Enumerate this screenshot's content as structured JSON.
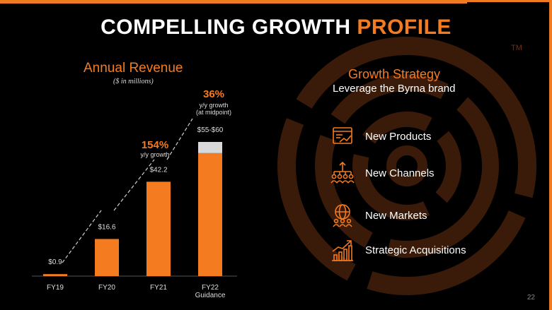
{
  "title": {
    "main": "COMPELLING GROWTH",
    "highlight": "PROFILE"
  },
  "trademark": "TM",
  "revenue": {
    "title": "Annual Revenue",
    "subtitle": "($ in millions)"
  },
  "chart_data": {
    "type": "bar",
    "title": "Annual Revenue",
    "subtitle": "($ in millions)",
    "categories": [
      "FY19",
      "FY20",
      "FY21",
      "FY22 Guidance"
    ],
    "category_labels": [
      [
        "FY19"
      ],
      [
        "FY20"
      ],
      [
        "FY21"
      ],
      [
        "FY22",
        "Guidance"
      ]
    ],
    "values": [
      0.9,
      16.6,
      42.2,
      55
    ],
    "range_top": [
      null,
      null,
      null,
      60
    ],
    "data_labels": [
      "$0.9",
      "$16.6",
      "$42.2",
      "$55-$60"
    ],
    "ylim": [
      0,
      60
    ],
    "grid": false,
    "colors": {
      "bar": "#f47b20",
      "range": "#d9d9d9",
      "annotation": "#f47b20"
    },
    "annotations": [
      {
        "value": "154%",
        "lines": [
          "y/y growth"
        ]
      },
      {
        "value": "36%",
        "lines": [
          "y/y growth",
          "(at midpoint)"
        ]
      }
    ]
  },
  "strategy": {
    "title": "Growth Strategy",
    "subtitle": "Leverage the Byrna brand",
    "items": [
      {
        "label": "New Products",
        "icon": "product-chart-icon"
      },
      {
        "label": "New Channels",
        "icon": "channel-network-icon"
      },
      {
        "label": "New Markets",
        "icon": "globe-people-icon"
      },
      {
        "label": "Strategic Acquisitions",
        "icon": "growth-arrow-icon"
      }
    ]
  },
  "page_number": "22",
  "colors": {
    "accent": "#f47b20",
    "background": "#000000",
    "watermark": "#3a1a08"
  }
}
